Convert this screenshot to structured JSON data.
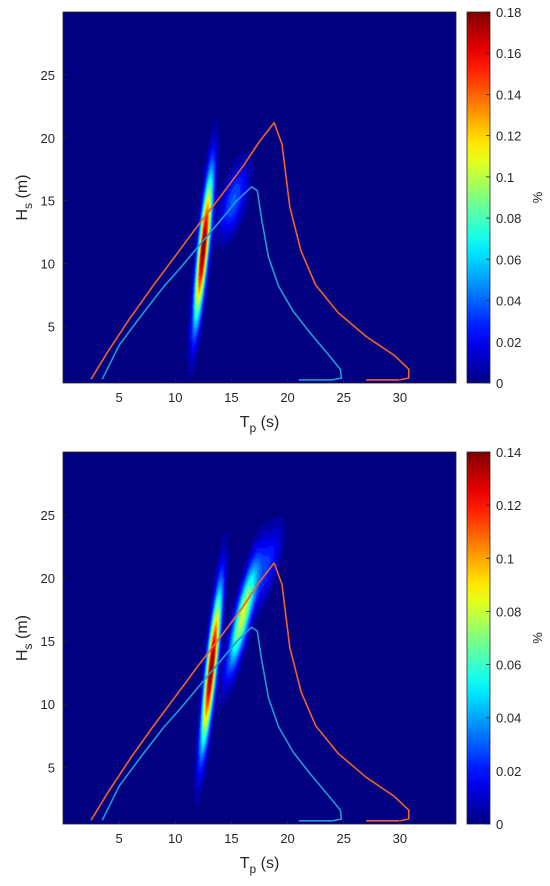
{
  "chart_data": [
    {
      "type": "heatmap",
      "xlabel": "T",
      "xlabel_sub": "p",
      "xlabel_unit": " (s)",
      "ylabel": "H",
      "ylabel_sub": "s",
      "ylabel_unit": " (m)",
      "xlim": [
        0,
        35
      ],
      "ylim": [
        0.5,
        30
      ],
      "xticks": [
        5,
        10,
        15,
        20,
        25,
        30
      ],
      "yticks": [
        5,
        10,
        15,
        20,
        25
      ],
      "colorbar": {
        "label": "%",
        "range": [
          0,
          0.18
        ],
        "ticks": [
          0,
          0.02,
          0.04,
          0.06,
          0.08,
          0.1,
          0.12,
          0.14,
          0.16,
          0.18
        ],
        "ticklabels": [
          "0",
          "0.02",
          "0.04",
          "0.06",
          "0.08",
          "0.1",
          "0.12",
          "0.14",
          "0.16",
          "0.18"
        ]
      },
      "density": [
        {
          "cx": 12.5,
          "cy": 11.2,
          "sx": 0.55,
          "sy": 4.0,
          "rho": 0.82,
          "amp": 0.18
        },
        {
          "cx": 15.2,
          "cy": 15.0,
          "sx": 0.9,
          "sy": 2.0,
          "rho": 0.6,
          "amp": 0.04
        }
      ],
      "series": [
        {
          "color": "#f0622a",
          "x": [
            2.5,
            4,
            6,
            8,
            10,
            12,
            14,
            16,
            17.5,
            18.8,
            19.5,
            20.2,
            21.2,
            22.5,
            24.5,
            27,
            29.5,
            30.8,
            30.8,
            30,
            27
          ],
          "y": [
            0.8,
            3,
            5.7,
            8.2,
            10.6,
            13,
            15.3,
            17.7,
            19.7,
            21.2,
            19.5,
            14.5,
            11,
            8.3,
            6.1,
            4.2,
            2.7,
            1.6,
            0.9,
            0.75,
            0.75
          ]
        },
        {
          "color": "#1f9bd4",
          "x": [
            3.5,
            5,
            7,
            9,
            10.5,
            12,
            14,
            15.5,
            16.8,
            17.3,
            17.7,
            18.3,
            19.2,
            20.5,
            22,
            23.6,
            24.7,
            24.8,
            24,
            21
          ],
          "y": [
            0.8,
            3.5,
            5.9,
            8.2,
            9.7,
            11.3,
            13.4,
            15,
            16.1,
            15.8,
            13.5,
            10.5,
            8.2,
            6.2,
            4.5,
            2.8,
            1.6,
            0.9,
            0.75,
            0.75
          ]
        }
      ]
    },
    {
      "type": "heatmap",
      "xlabel": "T",
      "xlabel_sub": "p",
      "xlabel_unit": " (s)",
      "ylabel": "H",
      "ylabel_sub": "s",
      "ylabel_unit": " (m)",
      "xlim": [
        0,
        35
      ],
      "ylim": [
        0.5,
        30
      ],
      "xticks": [
        5,
        10,
        15,
        20,
        25,
        30
      ],
      "yticks": [
        5,
        10,
        15,
        20,
        25
      ],
      "colorbar": {
        "label": "%",
        "range": [
          0,
          0.14
        ],
        "ticks": [
          0,
          0.02,
          0.04,
          0.06,
          0.08,
          0.1,
          0.12,
          0.14
        ],
        "ticklabels": [
          "0",
          "0.02",
          "0.04",
          "0.06",
          "0.08",
          "0.1",
          "0.12",
          "0.14"
        ]
      },
      "density": [
        {
          "cx": 13.2,
          "cy": 12.8,
          "sx": 0.6,
          "sy": 4.2,
          "rho": 0.85,
          "amp": 0.14
        },
        {
          "cx": 16.0,
          "cy": 17.0,
          "sx": 0.9,
          "sy": 3.0,
          "rho": 0.85,
          "amp": 0.08
        },
        {
          "cx": 18.2,
          "cy": 21.0,
          "sx": 0.9,
          "sy": 2.2,
          "rho": 0.7,
          "amp": 0.025
        }
      ],
      "series": [
        {
          "color": "#f0622a",
          "x": [
            2.5,
            4,
            6,
            8,
            10,
            12,
            14,
            16,
            17.5,
            18.8,
            19.5,
            20.2,
            21.2,
            22.5,
            24.5,
            27,
            29.5,
            30.8,
            30.8,
            30,
            27
          ],
          "y": [
            0.8,
            3,
            5.7,
            8.2,
            10.6,
            13,
            15.3,
            17.7,
            19.7,
            21.2,
            19.5,
            14.5,
            11,
            8.3,
            6.1,
            4.2,
            2.7,
            1.6,
            0.9,
            0.75,
            0.75
          ]
        },
        {
          "color": "#1f9bd4",
          "x": [
            3.5,
            5,
            7,
            9,
            10.5,
            12,
            14,
            15.5,
            16.8,
            17.3,
            17.7,
            18.3,
            19.2,
            20.5,
            22,
            23.6,
            24.7,
            24.8,
            24,
            21
          ],
          "y": [
            0.8,
            3.5,
            5.9,
            8.2,
            9.7,
            11.3,
            13.4,
            15,
            16.1,
            15.8,
            13.5,
            10.5,
            8.2,
            6.2,
            4.5,
            2.8,
            1.6,
            0.9,
            0.75,
            0.75
          ]
        }
      ]
    }
  ]
}
